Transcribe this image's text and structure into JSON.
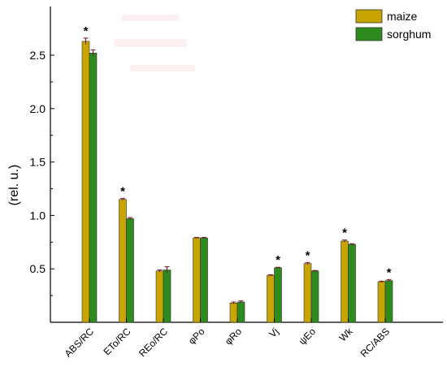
{
  "chart_data": {
    "type": "bar",
    "title": "",
    "xlabel": "",
    "ylabel": "(rel. u.)",
    "ylim": [
      0,
      2.5
    ],
    "yticks": [
      0.5,
      1.0,
      1.5,
      2.0,
      2.5
    ],
    "ytick_labels": [
      "0.5",
      "1.0",
      "1.5",
      "2.0",
      "2.5"
    ],
    "categories": [
      "ABS/RC",
      "ETo/RC",
      "REo/RC",
      "φPo",
      "φRo",
      "Vj",
      "ψEo",
      "Wk",
      "RC/ABS"
    ],
    "series": [
      {
        "name": "maize",
        "color": "#c8a400",
        "values": [
          2.63,
          1.15,
          0.48,
          0.79,
          0.18,
          0.44,
          0.55,
          0.76,
          0.38
        ],
        "errors": [
          0.03,
          0.01,
          0.01,
          0.005,
          0.01,
          0.005,
          0.01,
          0.01,
          0.005
        ]
      },
      {
        "name": "sorghum",
        "color": "#2e8b1e",
        "values": [
          2.52,
          0.97,
          0.49,
          0.79,
          0.19,
          0.51,
          0.48,
          0.73,
          0.39
        ],
        "errors": [
          0.03,
          0.01,
          0.03,
          0.005,
          0.01,
          0.005,
          0.005,
          0.005,
          0.01
        ]
      }
    ],
    "significance": [
      {
        "category": "ABS/RC",
        "series": "maize",
        "label": "*"
      },
      {
        "category": "ETo/RC",
        "series": "maize",
        "label": "*"
      },
      {
        "category": "Vj",
        "series": "sorghum",
        "label": "*"
      },
      {
        "category": "ψEo",
        "series": "maize",
        "label": "*"
      },
      {
        "category": "Wk",
        "series": "maize",
        "label": "*"
      },
      {
        "category": "RC/ABS",
        "series": "sorghum",
        "label": "*"
      }
    ],
    "legend_position": "top-right",
    "grid": false
  }
}
